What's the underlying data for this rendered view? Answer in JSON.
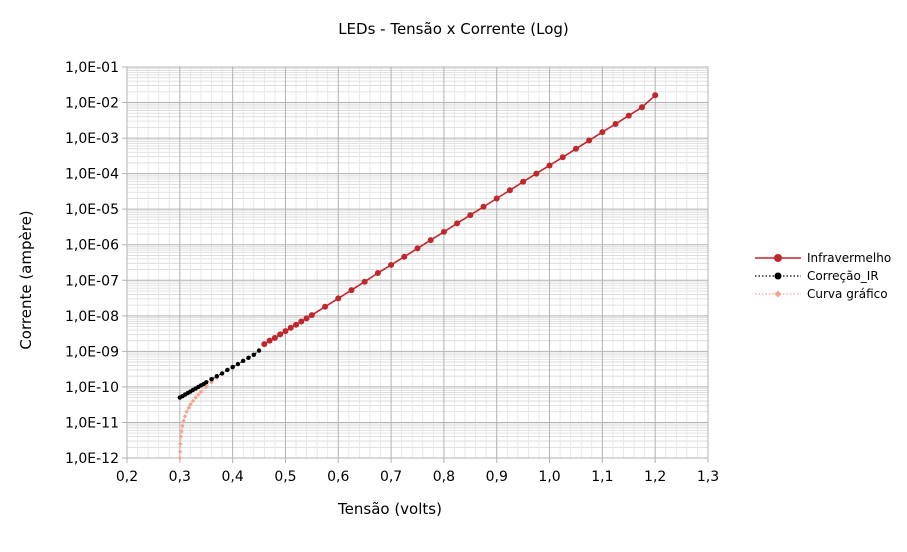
{
  "chart_data": {
    "type": "line",
    "title": "LEDs - Tensão x Corrente (Log)",
    "xlabel": "Tensão (volts)",
    "ylabel": "Corrente (ampère)",
    "xlim": [
      0.2,
      1.3
    ],
    "ylim": [
      1e-12,
      0.1
    ],
    "yscale": "log",
    "x_ticks": [
      "0,2",
      "0,3",
      "0,4",
      "0,5",
      "0,6",
      "0,7",
      "0,8",
      "0,9",
      "1,0",
      "1,1",
      "1,2",
      "1,3"
    ],
    "y_ticks": [
      "1,0E-12",
      "1,0E-11",
      "1,0E-10",
      "1,0E-09",
      "1,0E-08",
      "1,0E-07",
      "1,0E-06",
      "1,0E-05",
      "1,0E-04",
      "1,0E-03",
      "1,0E-02",
      "1,0E-01"
    ],
    "grid": true,
    "legend_position": "right",
    "series": [
      {
        "name": "Infravermelho",
        "color": "#c0272d",
        "marker": "circle",
        "line": "solid",
        "x": [
          0.46,
          0.47,
          0.48,
          0.49,
          0.5,
          0.51,
          0.52,
          0.53,
          0.54,
          0.55,
          0.575,
          0.6,
          0.625,
          0.65,
          0.675,
          0.7,
          0.725,
          0.75,
          0.775,
          0.8,
          0.825,
          0.85,
          0.875,
          0.9,
          0.925,
          0.95,
          0.975,
          1.0,
          1.025,
          1.05,
          1.075,
          1.1,
          1.125,
          1.15,
          1.175,
          1.2
        ],
        "y": [
          1.6e-09,
          2e-09,
          2.4e-09,
          3e-09,
          3.7e-09,
          4.6e-09,
          5.6e-09,
          6.9e-09,
          8.5e-09,
          1.05e-08,
          1.8e-08,
          3.1e-08,
          5.3e-08,
          9.1e-08,
          1.6e-07,
          2.7e-07,
          4.6e-07,
          7.9e-07,
          1.35e-06,
          2.3e-06,
          4e-06,
          6.8e-06,
          1.17e-05,
          2e-05,
          3.4e-05,
          5.9e-05,
          0.0001,
          0.00017,
          0.00029,
          0.0005,
          0.00086,
          0.00147,
          0.0025,
          0.0043,
          0.0074,
          0.016
        ]
      },
      {
        "name": "Correção_IR",
        "color": "#000000",
        "marker": "circle",
        "line": "dotted",
        "x": [
          0.3,
          0.305,
          0.31,
          0.315,
          0.32,
          0.325,
          0.33,
          0.335,
          0.34,
          0.345,
          0.35,
          0.36,
          0.37,
          0.38,
          0.39,
          0.4,
          0.41,
          0.42,
          0.43,
          0.44,
          0.45
        ],
        "y": [
          5e-11,
          5.5e-11,
          6.1e-11,
          6.7e-11,
          7.4e-11,
          8.2e-11,
          9e-11,
          1e-10,
          1.1e-10,
          1.2e-10,
          1.35e-10,
          1.65e-10,
          2e-10,
          2.4e-10,
          3e-10,
          3.6e-10,
          4.4e-10,
          5.4e-10,
          6.6e-10,
          8e-10,
          1.05e-09
        ]
      },
      {
        "name": "Curva gráfico",
        "color": "#f4a48c",
        "marker": "diamond",
        "line": "dotted",
        "x": [
          0.3,
          0.3005,
          0.301,
          0.302,
          0.303,
          0.305,
          0.307,
          0.31,
          0.313,
          0.317,
          0.32,
          0.325,
          0.33,
          0.335,
          0.34,
          0.35,
          0.36,
          0.37,
          0.38,
          0.39
        ],
        "y": [
          1e-12,
          1.5e-12,
          2.5e-12,
          4e-12,
          5.5e-12,
          8e-12,
          1.1e-11,
          1.5e-11,
          2e-11,
          2.6e-11,
          3.2e-11,
          4e-11,
          5e-11,
          6e-11,
          7.2e-11,
          1e-10,
          1.35e-10,
          1.8e-10,
          2.4e-10,
          3e-10
        ]
      }
    ]
  }
}
